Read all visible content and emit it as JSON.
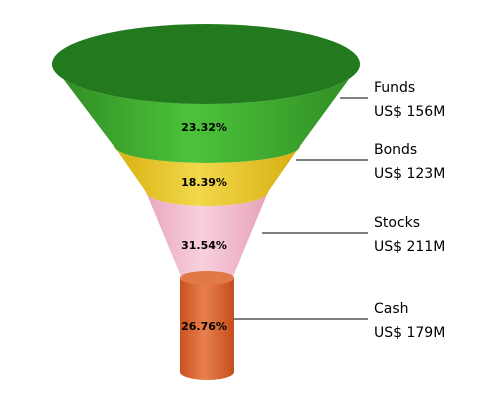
{
  "chart_data": {
    "type": "funnel",
    "categories": [
      "Funds",
      "Bonds",
      "Stocks",
      "Cash"
    ],
    "values": [
      156,
      123,
      211,
      179
    ],
    "value_labels": [
      "US$ 156M",
      "US$ 123M",
      "US$ 211M",
      "US$ 179M"
    ],
    "percent_labels": [
      "23.32%",
      "18.39%",
      "31.54%",
      "26.76%"
    ],
    "series": [
      {
        "name": "Funds",
        "value": 156,
        "value_label": "US$ 156M",
        "percent_label": "23.32%",
        "color": "#3a9a2c"
      },
      {
        "name": "Bonds",
        "value": 123,
        "value_label": "US$ 123M",
        "percent_label": "18.39%",
        "color": "#e8c81c"
      },
      {
        "name": "Stocks",
        "value": 211,
        "value_label": "US$ 211M",
        "percent_label": "31.54%",
        "color": "#f0b4c8"
      },
      {
        "name": "Cash",
        "value": 179,
        "value_label": "US$ 179M",
        "percent_label": "26.76%",
        "color": "#d9663a"
      }
    ],
    "title": "",
    "legend": "right, with leader lines"
  }
}
